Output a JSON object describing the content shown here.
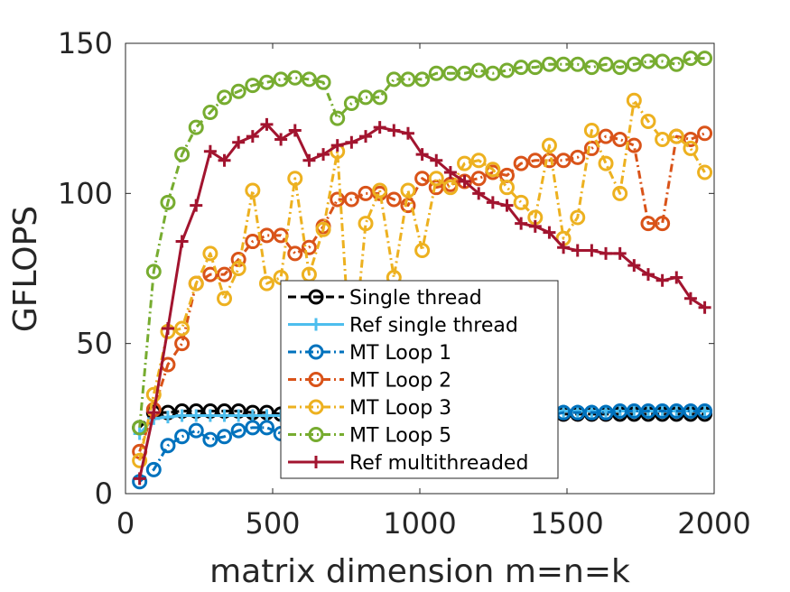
{
  "chart_data": {
    "type": "line",
    "title": "",
    "xlabel": "matrix dimension m=n=k",
    "ylabel": "GFLOPS",
    "xlim": [
      0,
      2000
    ],
    "ylim": [
      0,
      150
    ],
    "xticks": [
      0,
      500,
      1000,
      1500,
      2000
    ],
    "yticks": [
      0,
      50,
      100,
      150
    ],
    "xtick_labels": [
      "0",
      "500",
      "1000",
      "1500",
      "2000"
    ],
    "ytick_labels": [
      "0",
      "50",
      "100",
      "150"
    ],
    "grid": false,
    "legend_position": "lower-center",
    "x": [
      48,
      96,
      144,
      192,
      240,
      288,
      336,
      384,
      432,
      480,
      528,
      576,
      624,
      672,
      720,
      768,
      816,
      864,
      912,
      960,
      1008,
      1056,
      1104,
      1152,
      1200,
      1248,
      1296,
      1344,
      1392,
      1440,
      1488,
      1536,
      1584,
      1632,
      1680,
      1728,
      1776,
      1824,
      1872,
      1920,
      1968
    ],
    "series": [
      {
        "name": "Single thread",
        "color": "#000000",
        "marker": "circle",
        "linestyle": "dash",
        "values": [
          22,
          27,
          27,
          27.5,
          27.5,
          27.5,
          27.5,
          27.5,
          27,
          27,
          26.5,
          26.5,
          26.5,
          26.5,
          26.5,
          26.5,
          26.5,
          26.5,
          26.5,
          26.5,
          26.5,
          26.5,
          26.5,
          26.5,
          26.5,
          26.5,
          26.5,
          26.5,
          26.5,
          26.5,
          26.5,
          26.5,
          26.5,
          26.5,
          26.5,
          26.5,
          26.5,
          26.5,
          26.5,
          26.5,
          26.5
        ]
      },
      {
        "name": "Ref single thread",
        "color": "#4DBEEE",
        "marker": "plus",
        "linestyle": "solid",
        "values": [
          20,
          25,
          25.5,
          26,
          26,
          26,
          26,
          26,
          26,
          26,
          26,
          26,
          26,
          26.5,
          26.5,
          26.5,
          26.5,
          26.5,
          26.5,
          26.5,
          26.5,
          27,
          27,
          27,
          27,
          27,
          27,
          27,
          27,
          27,
          27.5,
          27.5,
          27.5,
          27.5,
          27.5,
          27.5,
          27.5,
          27.5,
          27.5,
          27.5,
          27.5
        ]
      },
      {
        "name": "MT Loop 1",
        "color": "#0072BD",
        "marker": "circle",
        "linestyle": "dashdot",
        "values": [
          4,
          8,
          16,
          19,
          21,
          18,
          19,
          21,
          22,
          22,
          20,
          21,
          22,
          22,
          23,
          23,
          23,
          23.5,
          23.5,
          23.5,
          24,
          24,
          24,
          24.5,
          24.5,
          25,
          25,
          25,
          25,
          26,
          27,
          27,
          27,
          27,
          27.5,
          27.5,
          27.5,
          27.5,
          27.5,
          27.5,
          27.5
        ]
      },
      {
        "name": "MT Loop 2",
        "color": "#D95319",
        "marker": "circle",
        "linestyle": "dashdot",
        "values": [
          14,
          28,
          43,
          50,
          70,
          73,
          73,
          78,
          84,
          86,
          86,
          80,
          82,
          89,
          98,
          98,
          100,
          100,
          98,
          96,
          105,
          102,
          103,
          104,
          105,
          107,
          106,
          110,
          111,
          111,
          111,
          112,
          115,
          119,
          118,
          116,
          90,
          90,
          119,
          118,
          120
        ]
      },
      {
        "name": "MT Loop 3",
        "color": "#EDB120",
        "marker": "circle",
        "linestyle": "dashdot",
        "values": [
          11,
          33,
          54,
          55,
          70,
          80,
          65,
          75,
          101,
          70,
          72,
          105,
          73,
          88,
          114,
          40,
          90,
          101,
          72,
          101,
          81,
          105,
          102,
          110,
          111,
          108,
          102,
          97,
          92,
          116,
          85,
          92,
          121,
          110,
          100,
          131,
          124,
          118,
          119,
          115,
          107
        ]
      },
      {
        "name": "MT Loop 5",
        "color": "#77AC30",
        "marker": "circle",
        "linestyle": "dashdot",
        "values": [
          22,
          74,
          97,
          113,
          122,
          127,
          132,
          134,
          136,
          137,
          138,
          138.5,
          138,
          137,
          125,
          130,
          132,
          132,
          138,
          138,
          138,
          140,
          140,
          140,
          141,
          140,
          141,
          142,
          142,
          143,
          143,
          143,
          142,
          143,
          142,
          143,
          144,
          144,
          143,
          145,
          145
        ]
      },
      {
        "name": "Ref multithreaded",
        "color": "#A2142F",
        "marker": "plus",
        "linestyle": "solid",
        "values": [
          5,
          27,
          55,
          84,
          96,
          114,
          111,
          117,
          119,
          123,
          118,
          121,
          111,
          113,
          116,
          117,
          119,
          122,
          121,
          120,
          113,
          111,
          107,
          104,
          100,
          97,
          96,
          90,
          89,
          87,
          82,
          81,
          81,
          80,
          80,
          76,
          73,
          71,
          72,
          65,
          62
        ]
      }
    ]
  }
}
